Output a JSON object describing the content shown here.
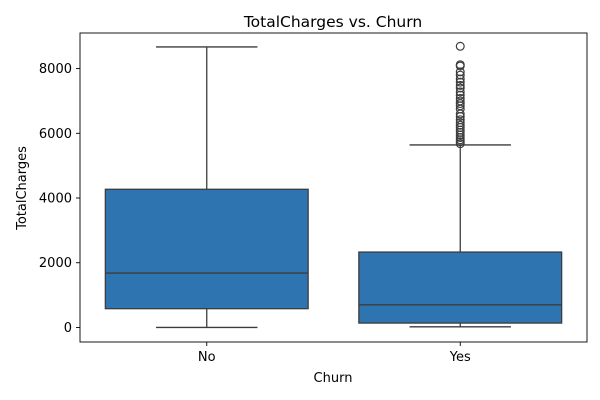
{
  "chart_data": {
    "type": "box",
    "title": "TotalCharges vs. Churn",
    "xlabel": "Churn",
    "ylabel": "TotalCharges",
    "categories": [
      "No",
      "Yes"
    ],
    "boxes": [
      {
        "category": "No",
        "whisker_low": 0,
        "q1": 580,
        "median": 1680,
        "q3": 4270,
        "whisker_high": 8670,
        "outliers": []
      },
      {
        "category": "Yes",
        "whisker_low": 20,
        "q1": 135,
        "median": 700,
        "q3": 2330,
        "whisker_high": 5640,
        "outliers": [
          5680,
          5740,
          5800,
          5870,
          5950,
          6030,
          6100,
          6180,
          6250,
          6330,
          6420,
          6520,
          6600,
          6750,
          6850,
          6920,
          7000,
          7080,
          7180,
          7280,
          7400,
          7480,
          7580,
          7680,
          7800,
          7900,
          8080,
          8120,
          8690
        ]
      }
    ],
    "y_ticks": [
      0,
      2000,
      4000,
      6000,
      8000
    ],
    "ylim": [
      -450,
      9100
    ],
    "box_color": "#2e74b0",
    "line_color": "#3c3c3c",
    "grid": false,
    "legend": "none"
  }
}
